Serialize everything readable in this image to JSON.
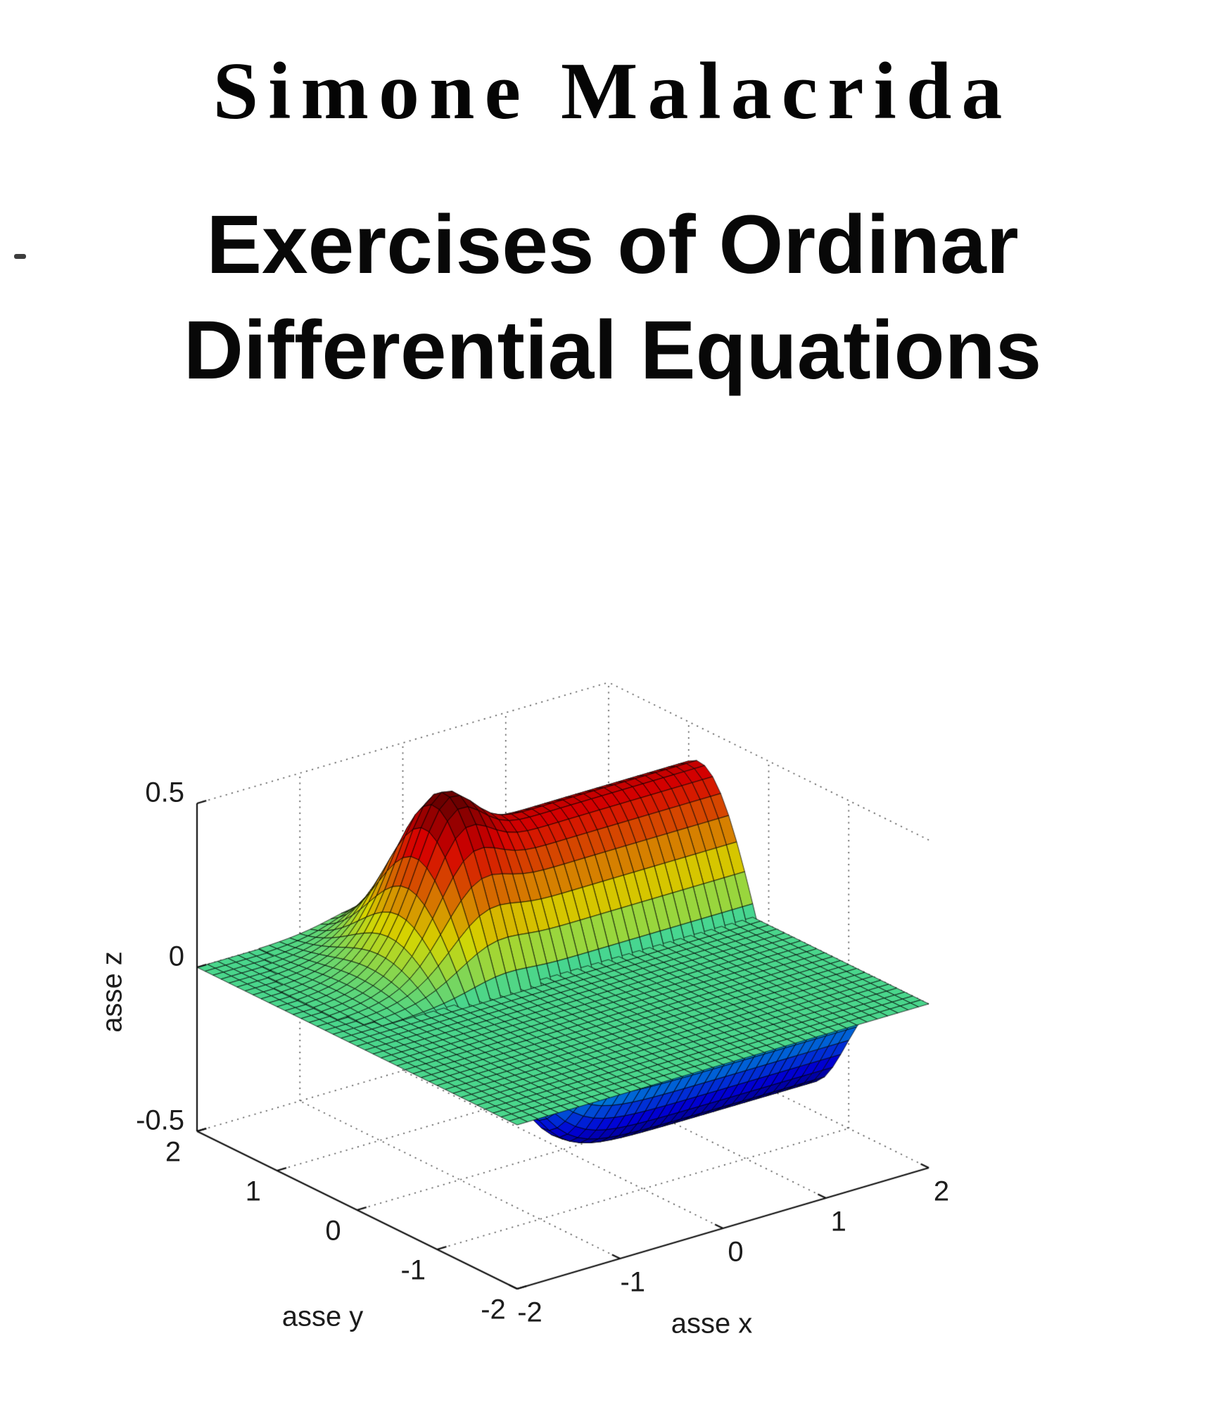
{
  "author": "Simone Malacrida",
  "title": {
    "line1": "Exercises of Ordinar",
    "line2": "Differential Equations"
  },
  "chart_data": {
    "type": "surface_3d",
    "title": "",
    "xlabel": "asse x",
    "ylabel": "asse y",
    "zlabel": "asse z",
    "xlim": [
      -2,
      2
    ],
    "ylim": [
      -2,
      2
    ],
    "zlim": [
      -0.5,
      0.5
    ],
    "x_ticks": {
      "values": [
        -2,
        -1,
        0,
        1,
        2
      ],
      "labels": [
        "-2",
        "-1",
        "0",
        "1",
        "2"
      ]
    },
    "y_ticks": {
      "values": [
        2,
        1,
        0,
        -1,
        -2
      ],
      "labels": [
        "2",
        "1",
        "0",
        "-1",
        "-2"
      ]
    },
    "z_ticks": {
      "values": [
        0.5,
        0,
        -0.5
      ],
      "labels": [
        "0.5",
        "0",
        "-0.5"
      ]
    },
    "colormap": "jet",
    "grid_style": "dotted",
    "legend": "none",
    "view": {
      "azimuth_deg": -37.5,
      "elevation_deg": 30
    },
    "mesh_cells": 40,
    "caxis": [
      -0.42,
      0.49
    ],
    "surfaces": [
      {
        "name": "zero-plane",
        "type": "plane",
        "equation": "z = 0",
        "z": 0,
        "appearance": "green faceted mesh across full x-y domain"
      },
      {
        "name": "wave-surface",
        "type": "function",
        "equation": "z = s(x)*(0.40*exp(-(y-0.85)^2/0.50) - 0.42*exp(-(y+0.50)^2/0.42)) + 0.17*exp(-(x+0.42)^2/0.11 - (y-1.12)^2/0.34), s(x)=1/(1+exp(-5(x+0.85)))",
        "params": {
          "gate_k": 5,
          "gate_x0": -0.85,
          "ridge_amp": 0.4,
          "ridge_y": 0.85,
          "ridge_w": 0.5,
          "trough_amp": 0.42,
          "trough_y": -0.5,
          "trough_w": 0.42,
          "knob_amp": 0.17,
          "knob_x": -0.42,
          "knob_wx": 0.11,
          "knob_y": 1.12,
          "knob_wy": 0.34
        },
        "z_range": [
          -0.42,
          0.49
        ],
        "appearance": "jet-colored ridge (dark red peak ~0.49) along y≈0.85 and blue trough (~-0.42) along y≈-0.5, flat elsewhere"
      }
    ]
  }
}
